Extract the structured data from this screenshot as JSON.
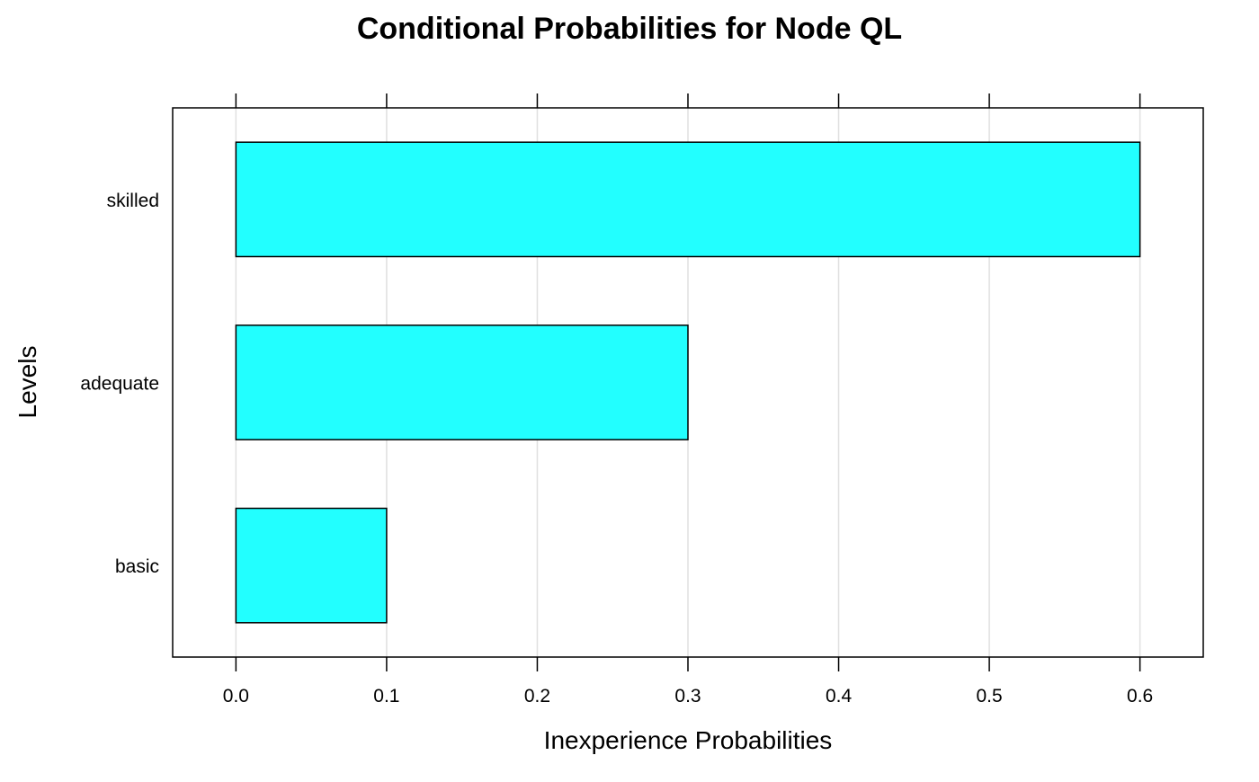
{
  "chart_data": {
    "type": "bar",
    "orientation": "horizontal",
    "title": "Conditional Probabilities for Node QL",
    "xlabel": "Inexperience Probabilities",
    "ylabel": "Levels",
    "categories": [
      "basic",
      "adequate",
      "skilled"
    ],
    "values": [
      0.1,
      0.3,
      0.6
    ],
    "xlim": [
      -0.042,
      0.642
    ],
    "xticks": [
      0.0,
      0.1,
      0.2,
      0.3,
      0.4,
      0.5,
      0.6
    ],
    "xtick_labels": [
      "0.0",
      "0.1",
      "0.2",
      "0.3",
      "0.4",
      "0.5",
      "0.6"
    ],
    "grid": true,
    "bar_color": "#22ffff",
    "bar_edge_color": "#000000",
    "grid_color": "#e0e0e0"
  }
}
